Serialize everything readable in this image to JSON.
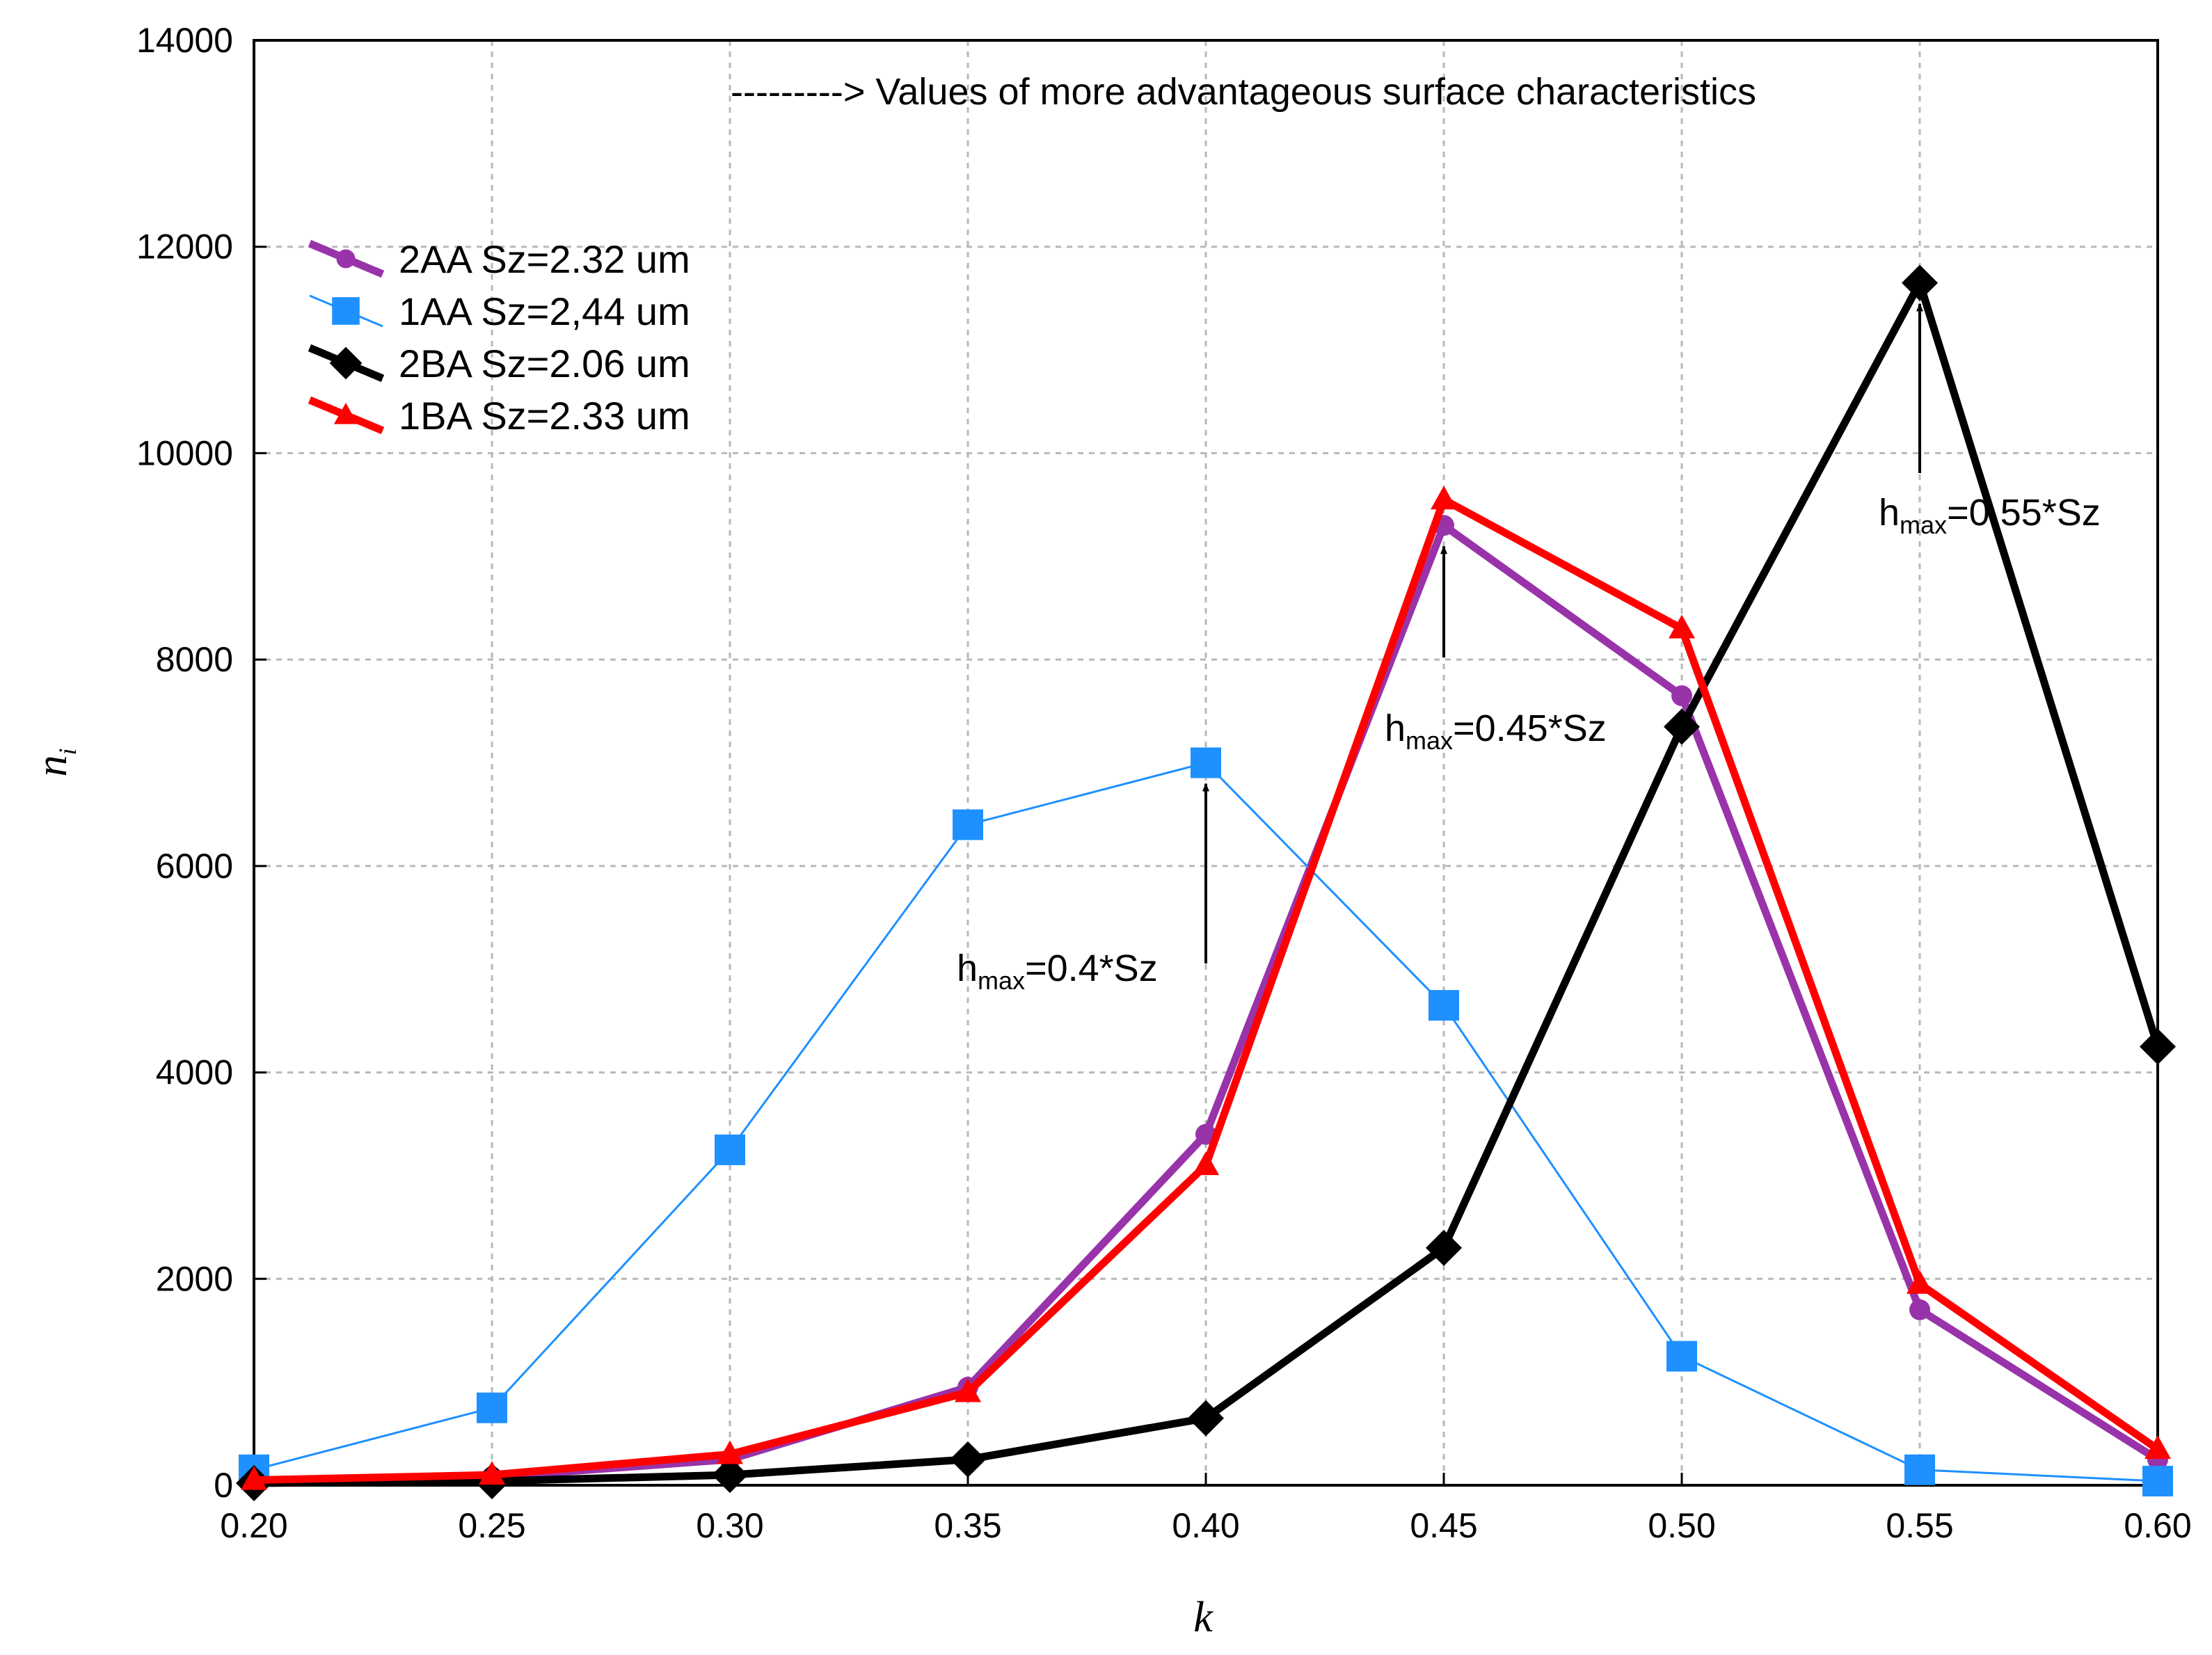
{
  "chart_data": {
    "type": "line",
    "title": "",
    "xlabel": "k",
    "ylabel": "n",
    "ylabel_sub": "i",
    "xlim": [
      0.2,
      0.6
    ],
    "ylim": [
      0,
      14000
    ],
    "grid": true,
    "x_ticks": [
      "0.20",
      "0.25",
      "0.30",
      "0.35",
      "0.40",
      "0.45",
      "0.50",
      "0.55",
      "0.60"
    ],
    "y_ticks": [
      "0",
      "2000",
      "4000",
      "6000",
      "8000",
      "10000",
      "12000",
      "14000"
    ],
    "x": [
      0.2,
      0.25,
      0.3,
      0.35,
      0.4,
      0.45,
      0.5,
      0.55,
      0.6
    ],
    "legend_position": "upper-left",
    "series": [
      {
        "name": "2AA Sz=2.32 um",
        "color": "#9933aa",
        "marker": "circle",
        "values": [
          40,
          80,
          250,
          950,
          3400,
          9300,
          7650,
          1700,
          250
        ]
      },
      {
        "name": "1AA Sz=2,44 um",
        "color": "#1e90ff",
        "marker": "square",
        "values": [
          150,
          750,
          3250,
          6400,
          7000,
          4650,
          1250,
          150,
          40
        ]
      },
      {
        "name": "2BA Sz=2.06 um",
        "color": "#000000",
        "marker": "diamond",
        "values": [
          20,
          40,
          100,
          250,
          650,
          2300,
          7350,
          11650,
          4250
        ]
      },
      {
        "name": "1BA Sz=2.33 um",
        "color": "#ff0000",
        "marker": "triangle",
        "values": [
          50,
          100,
          300,
          900,
          3100,
          9550,
          8300,
          1950,
          350
        ]
      }
    ],
    "annotations": {
      "header": "---------> Values of more advantageous surface characteristics",
      "peaks": [
        {
          "prefix": "h",
          "sub": "max",
          "suffix": "=0.4*Sz",
          "x": 0.4,
          "y": 7000
        },
        {
          "prefix": "h",
          "sub": "max",
          "suffix": "=0.45*Sz",
          "x": 0.45,
          "y": 9300
        },
        {
          "prefix": "h",
          "sub": "max",
          "suffix": "=0.55*Sz",
          "x": 0.55,
          "y": 11650
        }
      ]
    }
  }
}
